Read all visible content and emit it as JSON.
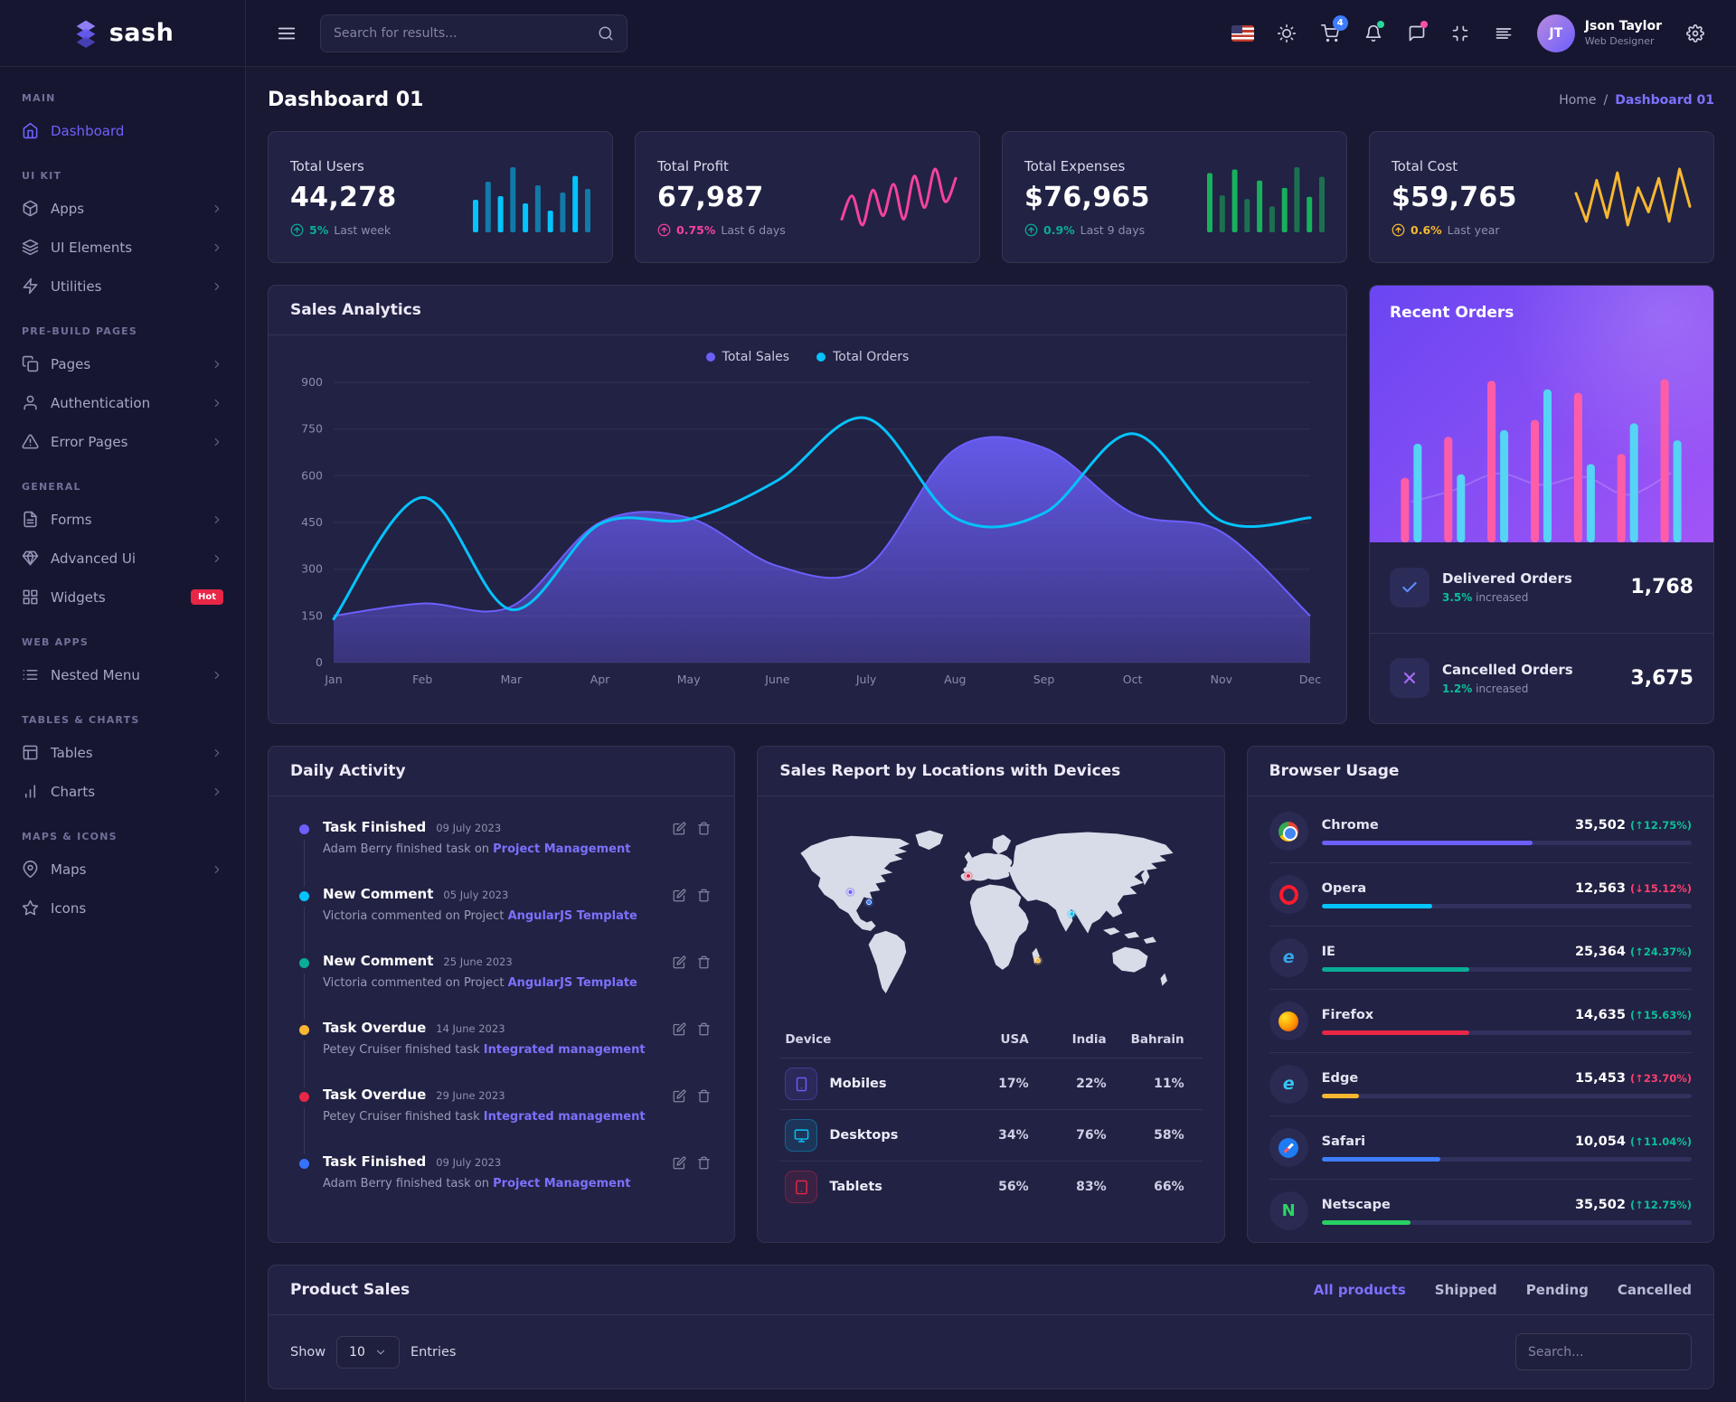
{
  "brand": {
    "name": "sash"
  },
  "topbar": {
    "search_placeholder": "Search for results...",
    "cart_badge": "4",
    "user": {
      "name": "Json Taylor",
      "role": "Web Designer"
    }
  },
  "sidebar": {
    "sections": [
      {
        "label": "MAIN",
        "items": [
          {
            "label": "Dashboard",
            "icon": "home",
            "active": true,
            "chevron": false
          }
        ]
      },
      {
        "label": "UI KIT",
        "items": [
          {
            "label": "Apps",
            "icon": "box",
            "chevron": true
          },
          {
            "label": "UI Elements",
            "icon": "layers",
            "chevron": true
          },
          {
            "label": "Utilities",
            "icon": "zap",
            "chevron": true
          }
        ]
      },
      {
        "label": "PRE-BUILD PAGES",
        "items": [
          {
            "label": "Pages",
            "icon": "copy",
            "chevron": true
          },
          {
            "label": "Authentication",
            "icon": "user",
            "chevron": true
          },
          {
            "label": "Error Pages",
            "icon": "alert",
            "chevron": true
          }
        ]
      },
      {
        "label": "GENERAL",
        "items": [
          {
            "label": "Forms",
            "icon": "file",
            "chevron": true
          },
          {
            "label": "Advanced Ui",
            "icon": "gem",
            "chevron": true
          },
          {
            "label": "Widgets",
            "icon": "grid",
            "chevron": false,
            "badge": "Hot"
          }
        ]
      },
      {
        "label": "WEB APPS",
        "items": [
          {
            "label": "Nested Menu",
            "icon": "list",
            "chevron": true
          }
        ]
      },
      {
        "label": "TABLES & CHARTS",
        "items": [
          {
            "label": "Tables",
            "icon": "table",
            "chevron": true
          },
          {
            "label": "Charts",
            "icon": "bar-chart",
            "chevron": true
          }
        ]
      },
      {
        "label": "MAPS & ICONS",
        "items": [
          {
            "label": "Maps",
            "icon": "map-pin",
            "chevron": true
          },
          {
            "label": "Icons",
            "icon": "star",
            "chevron": false
          }
        ]
      }
    ]
  },
  "page": {
    "title": "Dashboard 01",
    "breadcrumb_home": "Home",
    "breadcrumb_current": "Dashboard 01"
  },
  "stats": [
    {
      "label": "Total Users",
      "value": "44,278",
      "delta": "5%",
      "period": "Last week",
      "tone": "success",
      "spark": "spark-users"
    },
    {
      "label": "Total Profit",
      "value": "67,987",
      "delta": "0.75%",
      "period": "Last 6 days",
      "tone": "pink",
      "spark": "spark-profit"
    },
    {
      "label": "Total Expenses",
      "value": "$76,965",
      "delta": "0.9%",
      "period": "Last 9 days",
      "tone": "success",
      "spark": "spark-expenses"
    },
    {
      "label": "Total Cost",
      "value": "$59,765",
      "delta": "0.6%",
      "period": "Last year",
      "tone": "warning",
      "spark": "spark-cost"
    }
  ],
  "sales_analytics": {
    "title": "Sales Analytics"
  },
  "recent_orders": {
    "title": "Recent Orders",
    "items": [
      {
        "label": "Delivered Orders",
        "sub_pct": "3.5%",
        "sub_text": "increased",
        "value": "1,768",
        "icon": "check",
        "icon_color": "#5b8cff"
      },
      {
        "label": "Cancelled Orders",
        "sub_pct": "1.2%",
        "sub_text": "increased",
        "value": "3,675",
        "icon": "x",
        "icon_color": "#a96ef8"
      }
    ]
  },
  "daily_activity": {
    "title": "Daily Activity",
    "items": [
      {
        "title": "Task Finished",
        "date": "09 July 2023",
        "text": "Adam Berry finished task on",
        "link": "Project Management",
        "color": "#6c5ffc"
      },
      {
        "title": "New Comment",
        "date": "05 July 2023",
        "text": "Victoria commented on Project",
        "link": "AngularJS Template",
        "color": "#05c3fb"
      },
      {
        "title": "New Comment",
        "date": "25 June 2023",
        "text": "Victoria commented on Project",
        "link": "AngularJS Template",
        "color": "#09ad95"
      },
      {
        "title": "Task Overdue",
        "date": "14 June 2023",
        "text": "Petey Cruiser finished task",
        "link": "Integrated management",
        "color": "#f7b731"
      },
      {
        "title": "Task Overdue",
        "date": "29 June 2023",
        "text": "Petey Cruiser finished task",
        "link": "Integrated management",
        "color": "#e82646"
      },
      {
        "title": "Task Finished",
        "date": "09 July 2023",
        "text": "Adam Berry finished task on",
        "link": "Project Management",
        "color": "#3772ff"
      }
    ]
  },
  "sales_report": {
    "title": "Sales Report by Locations with Devices",
    "columns": [
      "Device",
      "USA",
      "India",
      "Bahrain"
    ],
    "rows": [
      {
        "device": "Mobiles",
        "icon": "smartphone",
        "color": "#6c5ffc",
        "values": [
          "17%",
          "22%",
          "11%"
        ]
      },
      {
        "device": "Desktops",
        "icon": "monitor",
        "color": "#05c3fb",
        "values": [
          "34%",
          "76%",
          "58%"
        ]
      },
      {
        "device": "Tablets",
        "icon": "tablet",
        "color": "#e82646",
        "values": [
          "56%",
          "83%",
          "66%"
        ]
      }
    ]
  },
  "browser_usage": {
    "title": "Browser Usage",
    "rows": [
      {
        "name": "Chrome",
        "icon": "chrome",
        "value": "35,502",
        "pct": "12.75%",
        "dir": "up",
        "tone": "pos",
        "bar": 57,
        "color": "#6c5ffc"
      },
      {
        "name": "Opera",
        "icon": "opera",
        "value": "12,563",
        "pct": "15.12%",
        "dir": "down",
        "tone": "neg",
        "bar": 30,
        "color": "#05c3fb"
      },
      {
        "name": "IE",
        "icon": "ie",
        "value": "25,364",
        "pct": "24.37%",
        "dir": "up",
        "tone": "pos",
        "bar": 40,
        "color": "#09ad95"
      },
      {
        "name": "Firefox",
        "icon": "firefox",
        "value": "14,635",
        "pct": "15.63%",
        "dir": "up",
        "tone": "pos",
        "bar": 40,
        "color": "#e82646"
      },
      {
        "name": "Edge",
        "icon": "edge",
        "value": "15,453",
        "pct": "23.70%",
        "dir": "up",
        "tone": "neg",
        "bar": 10,
        "color": "#f7b731"
      },
      {
        "name": "Safari",
        "icon": "safari",
        "value": "10,054",
        "pct": "11.04%",
        "dir": "up",
        "tone": "pos",
        "bar": 32,
        "color": "#3e7dfc"
      },
      {
        "name": "Netscape",
        "icon": "netscape",
        "value": "35,502",
        "pct": "12.75%",
        "dir": "up",
        "tone": "pos",
        "bar": 24,
        "color": "#27d163"
      }
    ]
  },
  "product_sales": {
    "title": "Product Sales",
    "tabs": [
      {
        "label": "All products",
        "active": true
      },
      {
        "label": "Shipped",
        "active": false
      },
      {
        "label": "Pending",
        "active": false
      },
      {
        "label": "Cancelled",
        "active": false
      }
    ],
    "show_label": "Show",
    "page_size": "10",
    "entries_label": "Entries",
    "search_placeholder": "Search..."
  },
  "chart_data": [
    {
      "id": "sales-analytics",
      "type": "area",
      "title": "Sales Analytics",
      "categories": [
        "Jan",
        "Feb",
        "Mar",
        "Apr",
        "May",
        "June",
        "July",
        "Aug",
        "Sep",
        "Oct",
        "Nov",
        "Dec"
      ],
      "series": [
        {
          "name": "Total Sales",
          "color": "#6c5ffc",
          "fill": true,
          "values": [
            150,
            190,
            180,
            450,
            465,
            310,
            305,
            685,
            690,
            480,
            420,
            150
          ]
        },
        {
          "name": "Total Orders",
          "color": "#05c3fb",
          "fill": false,
          "values": [
            140,
            530,
            170,
            445,
            460,
            585,
            785,
            465,
            480,
            735,
            455,
            465
          ]
        }
      ],
      "ylim": [
        0,
        900
      ],
      "yticks": [
        0,
        150,
        300,
        450,
        600,
        750,
        900
      ],
      "grid": true,
      "legend_position": "top"
    },
    {
      "id": "spark-users",
      "type": "bar",
      "color": "#05c3fb",
      "values": [
        45,
        70,
        50,
        90,
        40,
        65,
        30,
        55,
        78,
        60
      ]
    },
    {
      "id": "spark-profit",
      "type": "line",
      "color": "#f5439d",
      "sharp": false,
      "values": [
        35,
        55,
        30,
        60,
        38,
        65,
        35,
        72,
        45,
        78,
        50,
        70
      ]
    },
    {
      "id": "spark-expenses",
      "type": "bar",
      "color": "#17b15c",
      "values": [
        80,
        50,
        85,
        45,
        70,
        35,
        60,
        88,
        48,
        75
      ]
    },
    {
      "id": "spark-cost",
      "type": "line",
      "color": "#f7b731",
      "sharp": true,
      "values": [
        55,
        40,
        62,
        42,
        66,
        38,
        58,
        45,
        63,
        40,
        68,
        48
      ]
    },
    {
      "id": "recent-orders",
      "type": "bar-group",
      "series": [
        {
          "name": "Sales",
          "color": "#fd5da8",
          "values": [
            38,
            62,
            95,
            72,
            88,
            52,
            96
          ]
        },
        {
          "name": "Orders",
          "color": "#55d4f6",
          "values": [
            58,
            40,
            66,
            90,
            46,
            70,
            60
          ]
        }
      ]
    }
  ]
}
